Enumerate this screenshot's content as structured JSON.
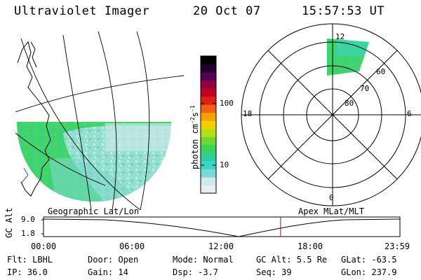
{
  "header": {
    "title": "Ultraviolet Imager",
    "date": "20 Oct 07",
    "time": "15:57:53 UT"
  },
  "left_panel": {
    "label": "Geographic Lat/Lon"
  },
  "right_panel": {
    "label": "Apex MLat/MLT",
    "mlt_labels": {
      "top": "12",
      "left": "18",
      "right": "6",
      "bottom": "0"
    },
    "mlat_labels": [
      "60",
      "70",
      "80"
    ]
  },
  "colorbar": {
    "unit_prefix": "photon cm",
    "unit_exp1": "-2",
    "unit_mid": "s",
    "unit_exp2": "-1",
    "tick_labels": [
      "100",
      "10"
    ],
    "colors": [
      "#e6eef0",
      "#cfe8ea",
      "#7fd8d8",
      "#38d6c8",
      "#2ecf9c",
      "#3ad45a",
      "#6fd830",
      "#b4e018",
      "#f0d000",
      "#f8a000",
      "#f06010",
      "#e02010",
      "#c00020",
      "#900040",
      "#5a0050",
      "#200030",
      "#000000"
    ]
  },
  "timeline": {
    "ylabel": "GC Alt",
    "y_ticks": [
      "9.0",
      "1.8"
    ],
    "x_ticks": [
      "00:00",
      "06:00",
      "12:00",
      "18:00",
      "23:59"
    ],
    "current_time_hours": 15.96,
    "marker_color": "#cc0000"
  },
  "footer": {
    "filter": "Flt: LBHL",
    "door": "Door: Open",
    "mode": "Mode: Normal",
    "gc_alt": "GC Alt: 5.5 Re",
    "glat": "GLat: -63.5",
    "ip": "IP: 36.0",
    "gain": "Gain: 14",
    "dsp": "Dsp:    -3.7",
    "seq": "Seq: 39",
    "glon": "GLon: 237.9"
  }
}
